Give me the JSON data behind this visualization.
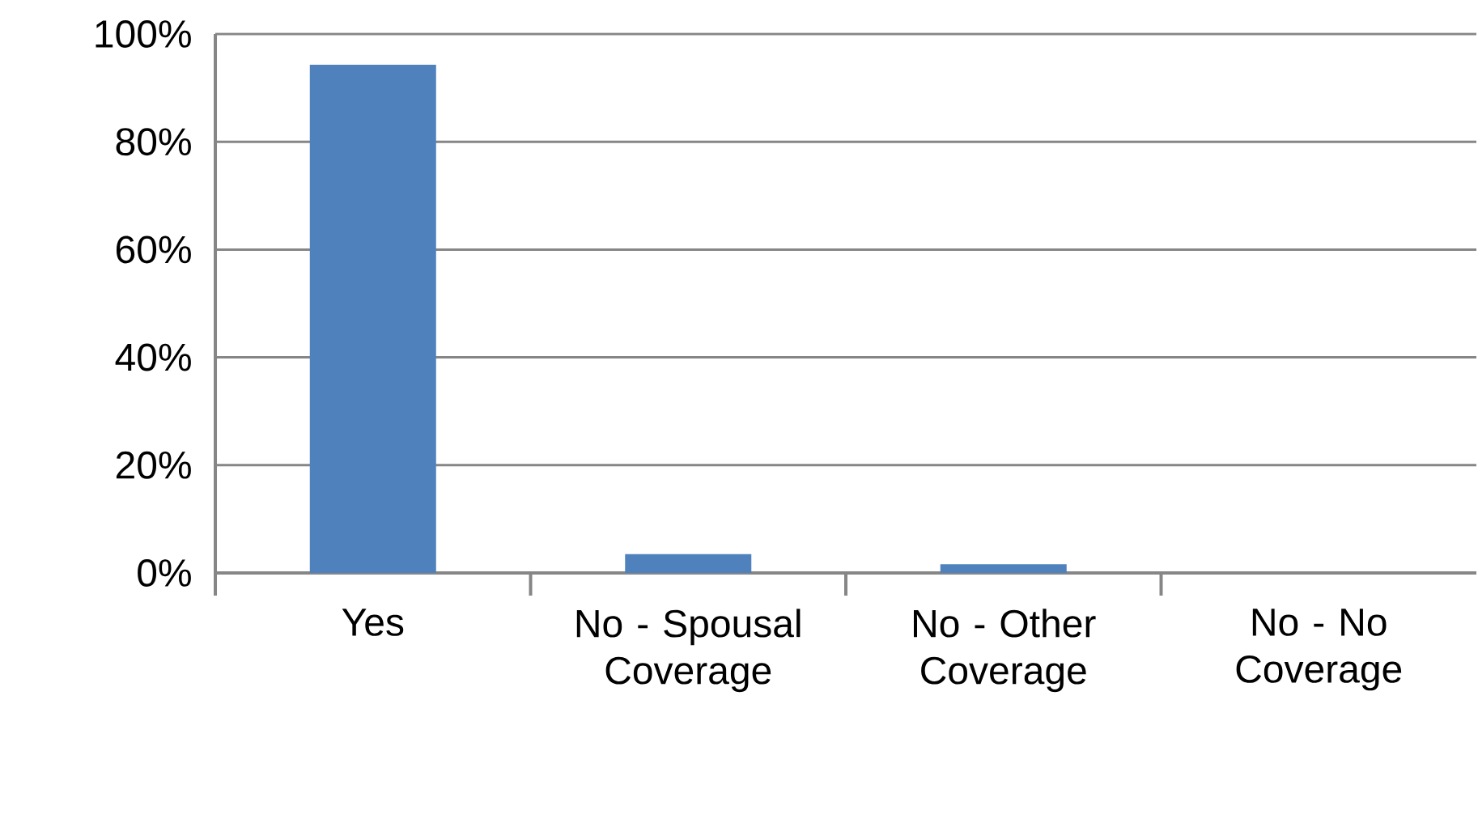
{
  "chart_data": {
    "type": "bar",
    "categories": [
      "Yes",
      "No - Spousal Coverage",
      "No - Other Coverage",
      "No - No Coverage"
    ],
    "values": [
      94.3,
      3.5,
      1.6,
      0
    ],
    "color": "#4f81bd",
    "ylim": [
      0,
      100
    ],
    "yticks": [
      {
        "value": 0,
        "label": "0%"
      },
      {
        "value": 20,
        "label": "20%"
      },
      {
        "value": 40,
        "label": "40%"
      },
      {
        "value": 60,
        "label": "60%"
      },
      {
        "value": 80,
        "label": "80%"
      },
      {
        "value": 100,
        "label": "100%"
      }
    ],
    "grid": "y"
  }
}
